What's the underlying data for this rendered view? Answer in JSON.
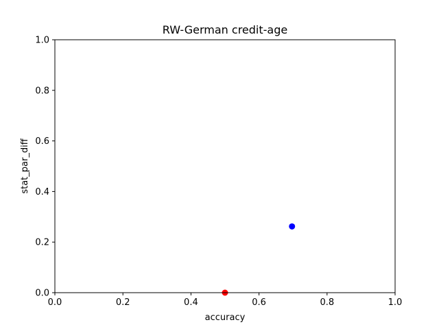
{
  "chart_data": {
    "type": "scatter",
    "title": "RW-German credit-age",
    "xlabel": "accuracy",
    "ylabel": "stat_par_diff",
    "xlim": [
      0.0,
      1.0
    ],
    "ylim": [
      0.0,
      1.0
    ],
    "xticks": [
      "0.0",
      "0.2",
      "0.4",
      "0.6",
      "0.8",
      "1.0"
    ],
    "yticks": [
      "0.0",
      "0.2",
      "0.4",
      "0.6",
      "0.8",
      "1.0"
    ],
    "grid": false,
    "legend": "none",
    "points": [
      {
        "x": 0.697,
        "y": 0.262,
        "color": "#0000ff"
      },
      {
        "x": 0.5,
        "y": 0.0,
        "color": "#ff0000"
      }
    ]
  }
}
